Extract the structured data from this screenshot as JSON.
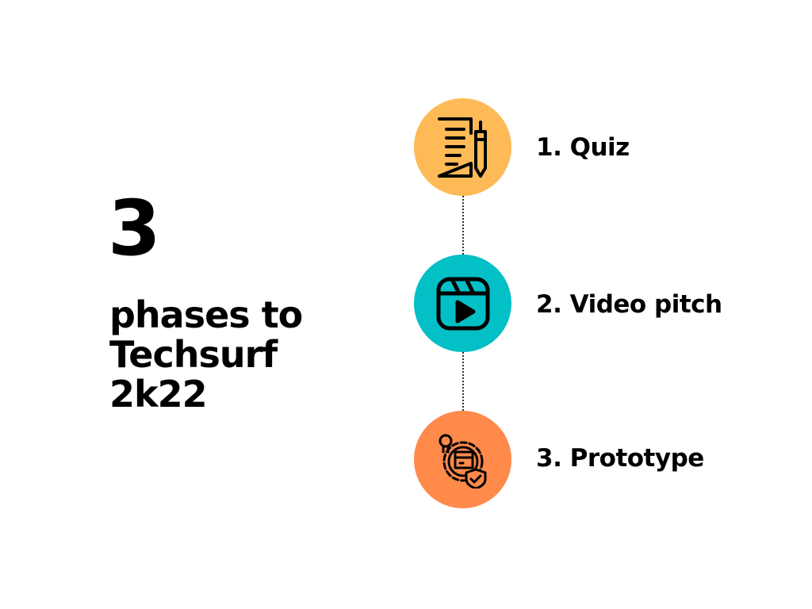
{
  "hero": {
    "number": "3",
    "headline_lines": [
      "phases to",
      "Techsurf",
      "2k22"
    ]
  },
  "phases": [
    {
      "label": "1. Quiz",
      "icon": "document-pen-icon",
      "color": "#FDBA56"
    },
    {
      "label": "2. Video pitch",
      "icon": "video-play-icon",
      "color": "#03BFC6"
    },
    {
      "label": "3. Prototype",
      "icon": "prototype-gear-icon",
      "color": "#FF8A4A"
    }
  ]
}
